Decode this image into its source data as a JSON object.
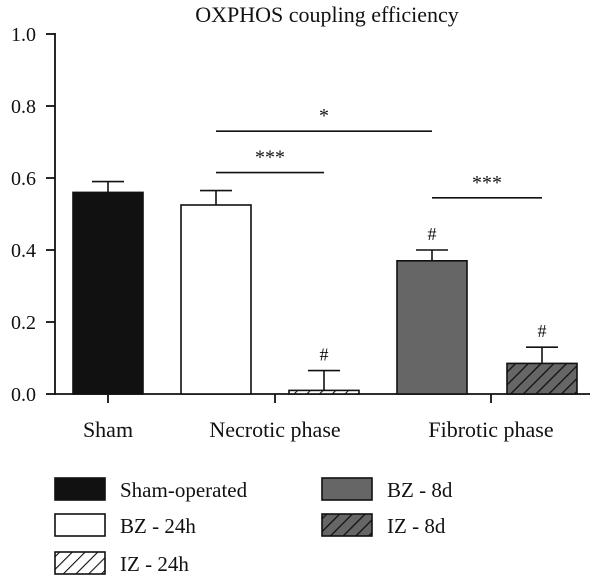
{
  "chart_data": {
    "type": "bar",
    "title": "OXPHOS coupling efficiency",
    "xlabel": "",
    "ylabel": "",
    "ylim": [
      0,
      1.0
    ],
    "yticks": [
      0.0,
      0.2,
      0.4,
      0.6,
      0.8,
      1.0
    ],
    "y_tick_labels": [
      "0.0",
      "0.2",
      "0.4",
      "0.6",
      "0.8",
      "1.0"
    ],
    "groups": [
      "Sham",
      "Necrotic phase",
      "Fibrotic phase"
    ],
    "bars": [
      {
        "group": "Sham",
        "series": "Sham-operated",
        "value": 0.56,
        "error": 0.03,
        "annotation": ""
      },
      {
        "group": "Necrotic phase",
        "series": "BZ - 24h",
        "value": 0.525,
        "error": 0.04,
        "annotation": ""
      },
      {
        "group": "Necrotic phase",
        "series": "IZ - 24h",
        "value": 0.01,
        "error": 0.055,
        "annotation": "#"
      },
      {
        "group": "Fibrotic phase",
        "series": "BZ - 8d",
        "value": 0.37,
        "error": 0.03,
        "annotation": "#"
      },
      {
        "group": "Fibrotic phase",
        "series": "IZ - 8d",
        "value": 0.085,
        "error": 0.045,
        "annotation": "#"
      }
    ],
    "significance": [
      {
        "from": 1,
        "to": 3,
        "label": "*",
        "y": 0.73
      },
      {
        "from": 1,
        "to": 2,
        "label": "***",
        "y": 0.615
      },
      {
        "from": 3,
        "to": 4,
        "label": "***",
        "y": 0.545
      }
    ],
    "legend": [
      {
        "label": "Sham-operated",
        "fill": "#111111",
        "pattern": "none"
      },
      {
        "label": "BZ - 8d",
        "fill": "#666666",
        "pattern": "none"
      },
      {
        "label": "BZ - 24h",
        "fill": "#ffffff",
        "pattern": "none"
      },
      {
        "label": "IZ - 8d",
        "fill": "#666666",
        "pattern": "hatch"
      },
      {
        "label": "IZ - 24h",
        "fill": "#ffffff",
        "pattern": "hatch"
      }
    ],
    "grid": false,
    "legend_position": "bottom"
  },
  "colors": {
    "Sham-operated": "#111111",
    "BZ - 24h": "#ffffff",
    "IZ - 24h": "#ffffff",
    "BZ - 8d": "#666666",
    "IZ - 8d": "#666666",
    "axis": "#111111"
  }
}
